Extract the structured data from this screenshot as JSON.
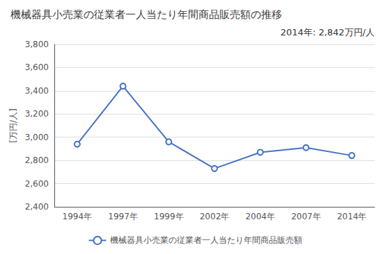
{
  "chart_data": {
    "type": "line",
    "title": "機械器具小売業の従業者一人当たり年間商品販売額の推移",
    "ylabel": "[万円/人]",
    "annotation": "2014年: 2,842万円/人",
    "categories": [
      "1994年",
      "1997年",
      "1999年",
      "2002年",
      "2004年",
      "2007年",
      "2014年"
    ],
    "series": [
      {
        "name": "機械器具小売業の従業者一人当たり年間商品販売額",
        "color": "#4472C4",
        "marker": "circle",
        "values": [
          2940,
          3440,
          2960,
          2730,
          2870,
          2910,
          2842
        ]
      }
    ],
    "ylim": [
      2400,
      3800
    ],
    "yticks": [
      {
        "value": 2400,
        "label": "2,400"
      },
      {
        "value": 2600,
        "label": "2,600"
      },
      {
        "value": 2800,
        "label": "2,800"
      },
      {
        "value": 3000,
        "label": "3,000"
      },
      {
        "value": 3200,
        "label": "3,200"
      },
      {
        "value": 3400,
        "label": "3,400"
      },
      {
        "value": 3600,
        "label": "3,600"
      },
      {
        "value": 3800,
        "label": "3,800"
      }
    ],
    "grid": true,
    "legend": "bottom"
  }
}
